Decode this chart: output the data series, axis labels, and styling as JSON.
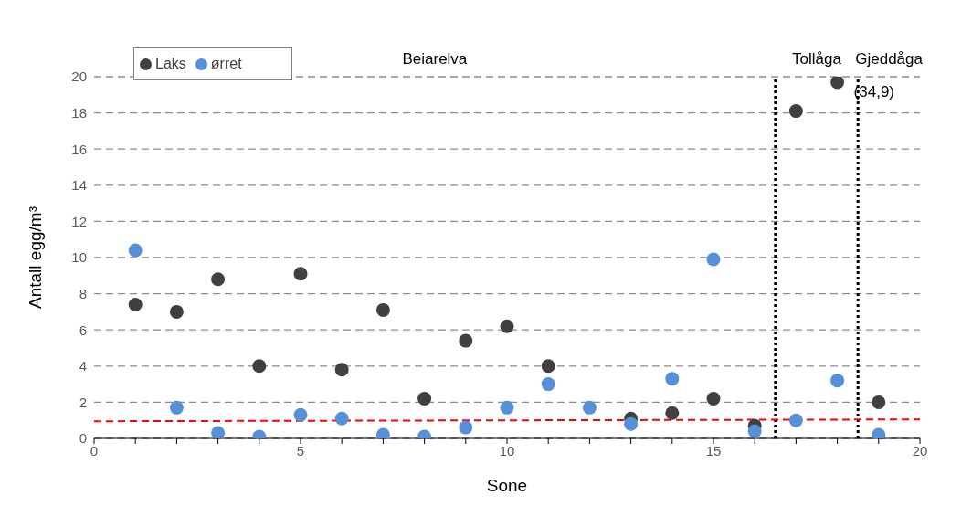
{
  "chart_data": {
    "type": "scatter",
    "xlabel": "Sone",
    "ylabel": "Antall egg/m³",
    "xlim": [
      0,
      20
    ],
    "ylim": [
      0,
      20
    ],
    "xticks": [
      0,
      {
        "value": 1,
        "label": null
      },
      {
        "value": 2,
        "label": null
      },
      {
        "value": 3,
        "label": null
      },
      {
        "value": 4,
        "label": null
      },
      5,
      {
        "value": 6,
        "label": null
      },
      {
        "value": 7,
        "label": null
      },
      {
        "value": 8,
        "label": null
      },
      {
        "value": 9,
        "label": null
      },
      10,
      {
        "value": 11,
        "label": null
      },
      {
        "value": 12,
        "label": null
      },
      {
        "value": 13,
        "label": null
      },
      {
        "value": 14,
        "label": null
      },
      15,
      {
        "value": 16,
        "label": null
      },
      {
        "value": 17,
        "label": null
      },
      {
        "value": 18,
        "label": null
      },
      {
        "value": 19,
        "label": null
      },
      20
    ],
    "yticks": [
      0,
      2,
      4,
      6,
      8,
      10,
      12,
      14,
      16,
      18,
      20
    ],
    "grid": "y",
    "legend": "top left",
    "marker": "circle",
    "x": [
      1,
      2,
      3,
      4,
      5,
      6,
      7,
      8,
      9,
      10,
      11,
      12,
      13,
      14,
      15,
      16,
      17,
      18,
      19
    ],
    "series": [
      {
        "name": "Laks",
        "color": "#404040",
        "values": [
          7.4,
          7.0,
          8.8,
          4.0,
          9.1,
          3.8,
          7.1,
          2.2,
          5.4,
          6.2,
          4.0,
          null,
          1.1,
          1.4,
          2.2,
          0.7,
          18.1,
          19.7,
          2.0
        ]
      },
      {
        "name": "ørret",
        "color": "#5590d8",
        "values": [
          10.4,
          1.7,
          0.3,
          0.1,
          1.3,
          1.1,
          0.2,
          0.1,
          0.6,
          1.7,
          3.0,
          1.7,
          0.8,
          3.3,
          9.9,
          0.4,
          1.0,
          3.2,
          0.2
        ]
      },
      {
        "type": "line",
        "color": "#ff0000",
        "line_style": "dashed",
        "marker": "none",
        "x": [
          0,
          20
        ],
        "values": [
          0.95,
          1.05
        ]
      }
    ],
    "ref_lines": [
      {
        "axis": "x",
        "value": 16.5,
        "color": "#000000",
        "line_style": "dotted"
      },
      {
        "axis": "x",
        "value": 18.5,
        "color": "#000000",
        "line_style": "dotted"
      }
    ],
    "annotations": [
      "Beiarelva",
      "Tollåga",
      "Gjeddåga",
      {
        "text": "(34,9)",
        "x": 18,
        "y": 19.7
      }
    ]
  }
}
